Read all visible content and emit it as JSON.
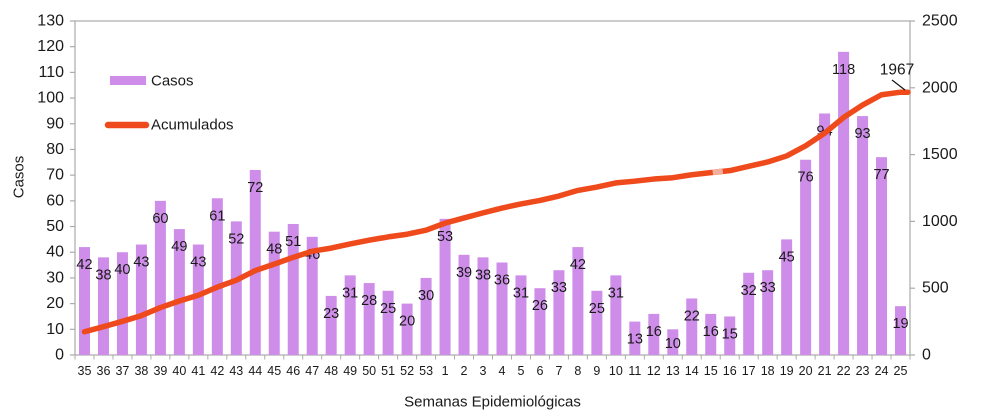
{
  "chart_data": {
    "type": "bar",
    "title": "",
    "xlabel": "Semanas Epidemiológicas",
    "ylabel_left": "Casos",
    "categories": [
      "35",
      "36",
      "37",
      "38",
      "39",
      "40",
      "41",
      "42",
      "43",
      "44",
      "45",
      "46",
      "47",
      "48",
      "49",
      "50",
      "51",
      "52",
      "53",
      "1",
      "2",
      "3",
      "4",
      "5",
      "6",
      "7",
      "8",
      "9",
      "10",
      "11",
      "12",
      "13",
      "14",
      "15",
      "16",
      "17",
      "18",
      "19",
      "20",
      "21",
      "22",
      "23",
      "24",
      "25"
    ],
    "series": [
      {
        "name": "Casos",
        "kind": "bar",
        "color": "#CE8DE9",
        "values": [
          42,
          38,
          40,
          43,
          60,
          49,
          43,
          61,
          52,
          72,
          48,
          51,
          46,
          23,
          31,
          28,
          25,
          20,
          30,
          53,
          39,
          38,
          36,
          31,
          26,
          33,
          42,
          25,
          31,
          13,
          16,
          10,
          22,
          16,
          15,
          32,
          33,
          45,
          76,
          94,
          118,
          93,
          77,
          19
        ]
      },
      {
        "name": "Acumulados",
        "kind": "line",
        "color": "#EE4A1C",
        "values": [
          174,
          212,
          252,
          295,
          355,
          404,
          447,
          508,
          560,
          632,
          680,
          731,
          777,
          800,
          831,
          859,
          884,
          904,
          934,
          987,
          1026,
          1064,
          1100,
          1131,
          1157,
          1190,
          1232,
          1257,
          1288,
          1301,
          1317,
          1327,
          1349,
          1365,
          1380,
          1412,
          1445,
          1490,
          1566,
          1660,
          1778,
          1871,
          1948,
          1967
        ]
      }
    ],
    "y_left": {
      "min": 0,
      "max": 130,
      "step": 10
    },
    "y_right": {
      "min": 0,
      "max": 2500,
      "step": 500
    },
    "grid": false,
    "legend_position": "inside-top-left",
    "annotation": {
      "text": "1967",
      "target_series": "Acumulados",
      "at_category": "25"
    }
  },
  "legend": {
    "items": [
      {
        "label": "Casos",
        "swatch": "bar",
        "color": "#CE8DE9"
      },
      {
        "label": "Acumulados",
        "swatch": "line",
        "color": "#EE4A1C"
      }
    ]
  },
  "colors": {
    "bar": "#CE8DE9",
    "line": "#EE4A1C",
    "line_faded_patch": "#F2AFA0",
    "axis": "#ABABAB",
    "tick_text": "#1A1A1A",
    "data_label_text": "#1F1F1F",
    "background": "#FFFFFF"
  }
}
